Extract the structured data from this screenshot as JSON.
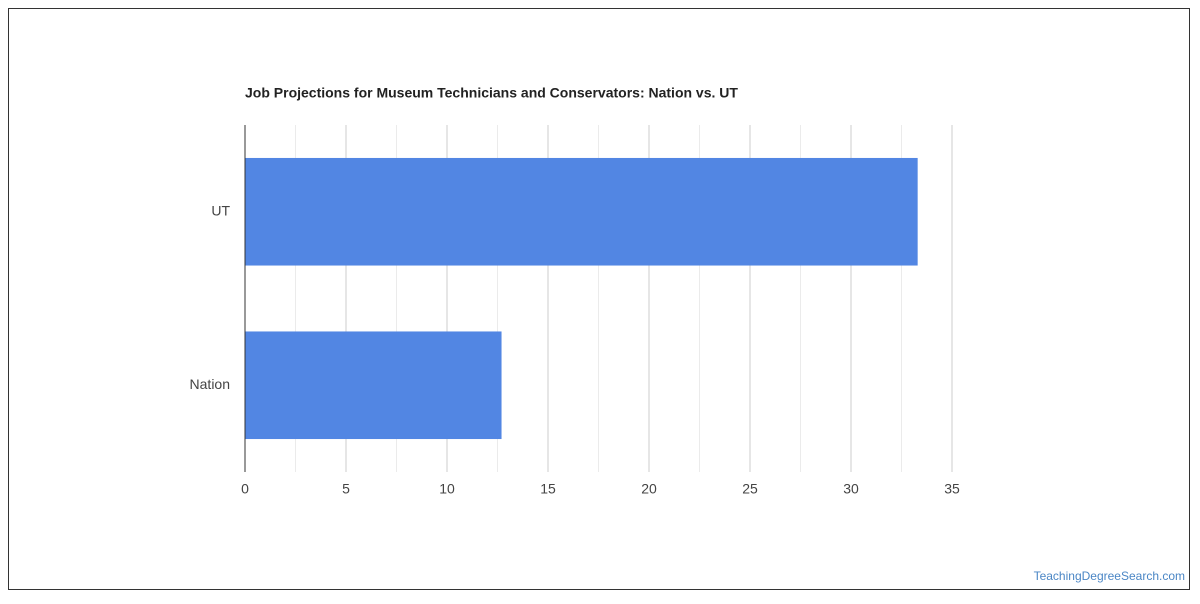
{
  "chart_data": {
    "type": "bar",
    "orientation": "horizontal",
    "title": "Job Projections for Museum Technicians and Conservators: Nation vs. UT",
    "categories": [
      "UT",
      "Nation"
    ],
    "values": [
      33.3,
      12.7
    ],
    "color": "#5286e3",
    "xlim": [
      0,
      35
    ],
    "xticks": [
      0,
      5,
      10,
      15,
      20,
      25,
      30,
      35
    ],
    "xminorticks": [
      2.5,
      7.5,
      12.5,
      17.5,
      22.5,
      27.5,
      32.5
    ],
    "grid": true
  },
  "footer": {
    "source": "TeachingDegreeSearch.com"
  }
}
